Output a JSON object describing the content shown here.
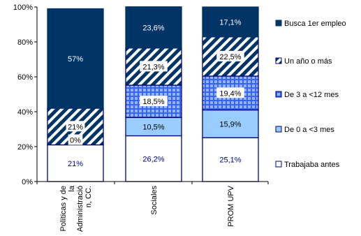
{
  "chart_data": {
    "type": "bar",
    "stacked": true,
    "categories": [
      "Políticas y de la Administración, CC.",
      "Sociales",
      "PROM UPV"
    ],
    "category_label_lines": [
      [
        "Políticas y de",
        "la",
        "Administració",
        "n, CC."
      ],
      [
        "Sociales"
      ],
      [
        "PROM UPV"
      ]
    ],
    "ylim": [
      0,
      100
    ],
    "y_ticks": [
      "0%",
      "20%",
      "40%",
      "60%",
      "80%",
      "100%"
    ],
    "legend_position": "right",
    "grid": false,
    "series": [
      {
        "name": "Trabajaba antes",
        "values": [
          21,
          26.2,
          25.1
        ],
        "labels": [
          "21%",
          "26,2%",
          "25,1%"
        ],
        "fill": "#ffffff",
        "border": "#000080",
        "text_color": "#000080",
        "pattern": "solid"
      },
      {
        "name": "De 0 a <3 mes",
        "values": [
          0,
          10.5,
          15.9
        ],
        "labels": [
          "0%",
          "10,5%",
          "15,9%"
        ],
        "fill": "#99ccff",
        "border": "#000080",
        "text_color": "#000000",
        "pattern": "solid"
      },
      {
        "name": "De 3 a <12 mes",
        "values": [
          0,
          18.5,
          19.4
        ],
        "labels": [
          "",
          "18,5%",
          "19,4%"
        ],
        "fill": "#3366ff",
        "border": "#000080",
        "text_color": "#000000",
        "pattern": "grid"
      },
      {
        "name": "Un año o más",
        "values": [
          21,
          21.3,
          22.5
        ],
        "labels": [
          "21%",
          "21,3%",
          "22,5%"
        ],
        "fill": "#003366",
        "border": "#000080",
        "text_color": "#000000",
        "pattern": "diagonal"
      },
      {
        "name": "Busca 1er empleo",
        "values": [
          57,
          23.6,
          17.1
        ],
        "labels": [
          "57%",
          "23,6%",
          "17,1%"
        ],
        "fill": "#003366",
        "border": "#003366",
        "text_color": "#ffffff",
        "pattern": "solid"
      }
    ]
  }
}
